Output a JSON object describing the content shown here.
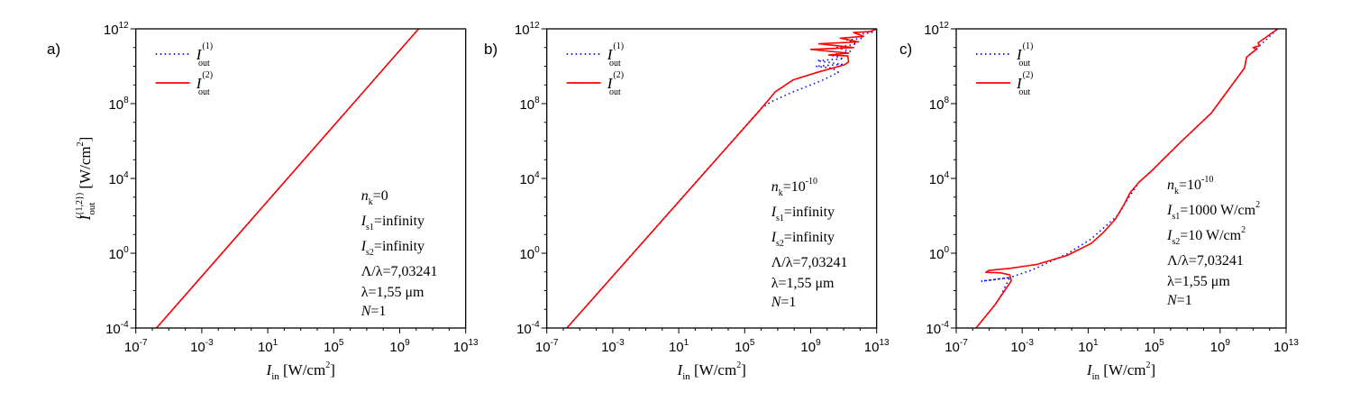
{
  "chart_data": [
    {
      "type": "line",
      "panel_label": "a)",
      "xscale": "log",
      "yscale": "log",
      "xlim_log10": [
        -7,
        13
      ],
      "ylim_log10": [
        -4,
        12
      ],
      "xticks_exp": [
        "-7",
        "-3",
        "1",
        "5",
        "9",
        "13"
      ],
      "yticks_exp": [
        "12",
        "8",
        "4",
        "0",
        "-4"
      ],
      "tick_base": "10",
      "xlabel": {
        "main": "I",
        "sub": "in",
        "unit": " [W/cm",
        "sup": "2",
        "close": "]"
      },
      "ylabel": {
        "main": "I",
        "sub": "out",
        "sup": "({1,2})",
        "unit": " [W/cm",
        "unit_sup": "2",
        "close": "]"
      },
      "legend": [
        {
          "main": "I",
          "sup": "(1)",
          "sub": "out",
          "color": "#0000ff",
          "style": "dotted"
        },
        {
          "main": "I",
          "sup": "(2)",
          "sub": "out",
          "color": "#ff0000",
          "style": "solid"
        }
      ],
      "annotation": [
        {
          "main": "n",
          "sub": "k",
          "text": "=0",
          "sup": ""
        },
        {
          "main": "I",
          "sub": "s1",
          "text": "=infinity",
          "sup": ""
        },
        {
          "main": "I",
          "sub": "s2",
          "text": "=infinity",
          "sup": ""
        },
        {
          "main": "",
          "sub": "",
          "text": "Λ/λ=7,03241",
          "sup": ""
        },
        {
          "main": "",
          "sub": "",
          "text": "λ=1,55 μm",
          "sup": ""
        },
        {
          "main": "N",
          "sub": "",
          "text": "=1",
          "sup": ""
        }
      ],
      "series": [
        {
          "name": "I_out^(1)",
          "color": "#0000ff",
          "style": "dotted",
          "points_log10": [
            [
              -5.75,
              -4
            ],
            [
              10.15,
              12
            ]
          ]
        },
        {
          "name": "I_out^(2)",
          "color": "#ff0000",
          "style": "solid",
          "points_log10": [
            [
              -5.75,
              -4
            ],
            [
              10.15,
              12
            ]
          ]
        }
      ]
    },
    {
      "type": "line",
      "panel_label": "b)",
      "xscale": "log",
      "yscale": "log",
      "xlim_log10": [
        -7,
        13
      ],
      "ylim_log10": [
        -4,
        12
      ],
      "xticks_exp": [
        "-7",
        "-3",
        "1",
        "5",
        "9",
        "13"
      ],
      "yticks_exp": [
        "12",
        "8",
        "4",
        "0",
        "-4"
      ],
      "tick_base": "10",
      "xlabel": {
        "main": "I",
        "sub": "in",
        "unit": " [W/cm",
        "sup": "2",
        "close": "]"
      },
      "legend": [
        {
          "main": "I",
          "sup": "(1)",
          "sub": "out",
          "color": "#0000ff",
          "style": "dotted"
        },
        {
          "main": "I",
          "sup": "(2)",
          "sub": "out",
          "color": "#ff0000",
          "style": "solid"
        }
      ],
      "annotation": [
        {
          "main": "n",
          "sub": "k",
          "text": "=10",
          "sup": "-10"
        },
        {
          "main": "I",
          "sub": "s1",
          "text": "=infinity",
          "sup": ""
        },
        {
          "main": "I",
          "sub": "s2",
          "text": "=infinity",
          "sup": ""
        },
        {
          "main": "",
          "sub": "",
          "text": "Λ/λ=7,03241",
          "sup": ""
        },
        {
          "main": "",
          "sub": "",
          "text": "λ=1,55 μm",
          "sup": ""
        },
        {
          "main": "N",
          "sub": "",
          "text": "=1",
          "sup": ""
        }
      ],
      "series": [
        {
          "name": "I_out^(1)",
          "color": "#0000ff",
          "style": "dotted",
          "points_log10": [
            [
              -5.78,
              -4
            ],
            [
              6.0,
              7.75
            ],
            [
              6.6,
              8.1
            ],
            [
              7.94,
              8.63
            ],
            [
              9.0,
              9.0
            ],
            [
              9.77,
              9.27
            ],
            [
              10.68,
              9.67
            ],
            [
              10.3,
              9.9
            ],
            [
              9.3,
              10.0
            ],
            [
              10.9,
              10.1
            ],
            [
              9.4,
              10.3
            ],
            [
              11.0,
              10.4
            ],
            [
              10.2,
              10.6
            ],
            [
              11.4,
              10.8
            ],
            [
              10.6,
              11.0
            ],
            [
              11.8,
              11.2
            ],
            [
              11.2,
              11.4
            ],
            [
              12.2,
              11.5
            ],
            [
              11.9,
              11.7
            ],
            [
              12.7,
              11.8
            ],
            [
              13,
              12
            ]
          ]
        },
        {
          "name": "I_out^(2)",
          "color": "#ff0000",
          "style": "solid",
          "points_log10": [
            [
              -5.78,
              -4
            ],
            [
              5.94,
              7.67
            ],
            [
              6.85,
              8.63
            ],
            [
              7.94,
              9.27
            ],
            [
              9.4,
              9.67
            ],
            [
              11.04,
              10.07
            ],
            [
              11.3,
              10.23
            ],
            [
              11.25,
              10.55
            ],
            [
              10.1,
              10.6
            ],
            [
              11.3,
              10.7
            ],
            [
              9.0,
              10.9
            ],
            [
              11.6,
              11.0
            ],
            [
              9.5,
              11.2
            ],
            [
              11.9,
              11.3
            ],
            [
              10.8,
              11.5
            ],
            [
              12.2,
              11.6
            ],
            [
              11.6,
              11.8
            ],
            [
              12.6,
              11.85
            ],
            [
              13,
              12
            ]
          ]
        }
      ]
    },
    {
      "type": "line",
      "panel_label": "c)",
      "xscale": "log",
      "yscale": "log",
      "xlim_log10": [
        -7,
        13
      ],
      "ylim_log10": [
        -4,
        12
      ],
      "xticks_exp": [
        "-7",
        "-3",
        "1",
        "5",
        "9",
        "13"
      ],
      "yticks_exp": [
        "12",
        "8",
        "4",
        "0",
        "-4"
      ],
      "tick_base": "10",
      "xlabel": {
        "main": "I",
        "sub": "in",
        "unit": " [W/cm",
        "sup": "2",
        "close": "]"
      },
      "legend": [
        {
          "main": "I",
          "sup": "(1)",
          "sub": "out",
          "color": "#0000ff",
          "style": "dotted"
        },
        {
          "main": "I",
          "sup": "(2)",
          "sub": "out",
          "color": "#ff0000",
          "style": "solid"
        }
      ],
      "annotation": [
        {
          "main": "n",
          "sub": "k",
          "text": "=10",
          "sup": "-10"
        },
        {
          "main": "I",
          "sub": "s1",
          "text": "=1000 W/cm",
          "sup": "2"
        },
        {
          "main": "I",
          "sub": "s2",
          "text": "=10 W/cm",
          "sup": "2"
        },
        {
          "main": "",
          "sub": "",
          "text": "Λ/λ=7,03241",
          "sup": ""
        },
        {
          "main": "",
          "sub": "",
          "text": "λ=1,55 μm",
          "sup": ""
        },
        {
          "main": "N",
          "sub": "",
          "text": "=1",
          "sup": ""
        }
      ],
      "series": [
        {
          "name": "I_out^(1)",
          "color": "#0000ff",
          "style": "dotted",
          "points_log10": [
            [
              -5.8,
              -4
            ],
            [
              -4.66,
              -2.77
            ],
            [
              -4.3,
              -2.3
            ],
            [
              -4.1,
              -1.9
            ],
            [
              -3.75,
              -1.3
            ],
            [
              -5.49,
              -1.5
            ],
            [
              -3.75,
              -1.3
            ],
            [
              -2.47,
              -0.92
            ],
            [
              -0.28,
              -0.04
            ],
            [
              1.18,
              0.76
            ],
            [
              2.82,
              2.05
            ],
            [
              3.36,
              2.85
            ],
            [
              4.1,
              3.81
            ],
            [
              4.82,
              4.38
            ],
            [
              6.65,
              5.98
            ],
            [
              8.47,
              7.5
            ],
            [
              10.48,
              9.91
            ],
            [
              10.6,
              10.47
            ],
            [
              10.85,
              10.67
            ],
            [
              11.2,
              10.9
            ],
            [
              11.4,
              11.1
            ],
            [
              12.5,
              12
            ]
          ]
        },
        {
          "name": "I_out^(2)",
          "color": "#ff0000",
          "style": "solid",
          "points_log10": [
            [
              -5.8,
              -4
            ],
            [
              -4.66,
              -2.77
            ],
            [
              -3.66,
              -1.48
            ],
            [
              -3.75,
              -1.16
            ],
            [
              -4.3,
              -1.05
            ],
            [
              -5.2,
              -1.02
            ],
            [
              -5.03,
              -0.92
            ],
            [
              -3.75,
              -0.81
            ],
            [
              -2.1,
              -0.6
            ],
            [
              -0.28,
              -0.12
            ],
            [
              1.18,
              0.52
            ],
            [
              1.9,
              1.09
            ],
            [
              2.64,
              1.81
            ],
            [
              3.18,
              2.61
            ],
            [
              3.55,
              3.25
            ],
            [
              4.1,
              3.81
            ],
            [
              4.82,
              4.38
            ],
            [
              6.65,
              5.98
            ],
            [
              8.47,
              7.5
            ],
            [
              10.48,
              9.91
            ],
            [
              10.6,
              10.47
            ],
            [
              10.85,
              10.67
            ],
            [
              11.2,
              10.9
            ],
            [
              11.0,
              11.0
            ],
            [
              11.4,
              11.1
            ],
            [
              11.3,
              11.25
            ],
            [
              12.5,
              12
            ]
          ]
        }
      ]
    }
  ]
}
